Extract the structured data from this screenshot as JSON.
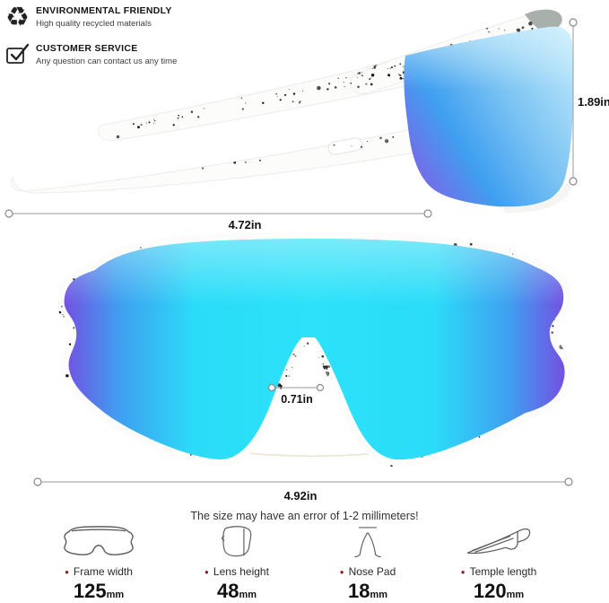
{
  "badges": [
    {
      "icon": "recycle-icon",
      "title": "ENVIRONMENTAL FRIENDLY",
      "subtitle": "High quality recycled materials"
    },
    {
      "icon": "checkbox-check-icon",
      "title": "CUSTOMER SERVICE",
      "subtitle": "Any question can contact us any time"
    }
  ],
  "measurements": {
    "lens_height_in": "1.89in",
    "side_width_in": "4.72in",
    "nose_bridge_in": "0.71in",
    "frame_width_in": "4.92in"
  },
  "note": "The size may have an error of 1-2 millimeters!",
  "specs": [
    {
      "icon": "frame-width-icon",
      "label": "Frame width",
      "value": "125",
      "unit": "mm"
    },
    {
      "icon": "lens-height-icon",
      "label": "Lens height",
      "value": "48",
      "unit": "mm"
    },
    {
      "icon": "nose-pad-icon",
      "label": "Nose Pad",
      "value": "18",
      "unit": "mm"
    },
    {
      "icon": "temple-length-icon",
      "label": "Temple length",
      "value": "120",
      "unit": "mm"
    }
  ],
  "colors": {
    "lens_cyan": "#2bdcf8",
    "lens_blue": "#3f9ff0",
    "lens_purple": "#7450e2",
    "side_lens_light": "#bfe9fb",
    "side_lens_mid": "#7cc4f3",
    "side_lens_purple": "#7a67e6",
    "frame_white": "#fcfcfb",
    "frame_gray_tip": "#a9afab",
    "inner_lens_olive": "#93a096",
    "speckle": "#141414",
    "measure_line": "#9a9a9a",
    "bullet": "#8f1c1c",
    "icon_stroke": "#5f5f5f"
  }
}
